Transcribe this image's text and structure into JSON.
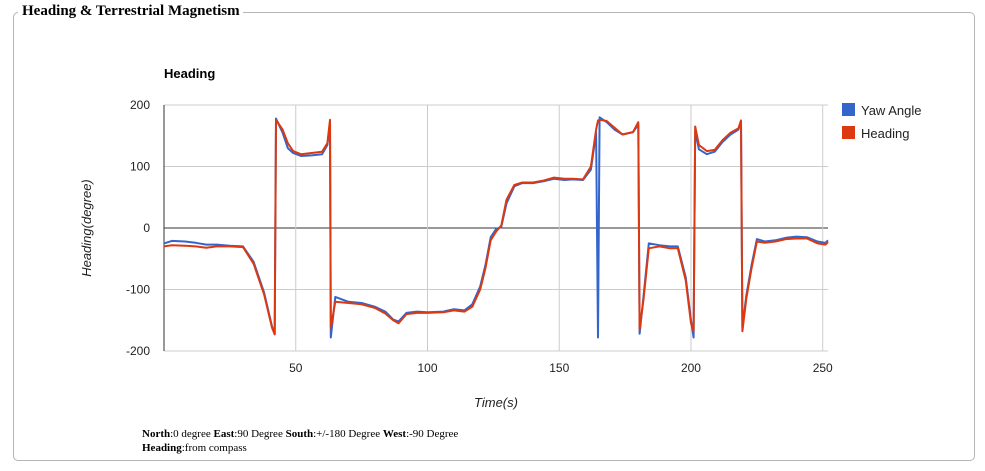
{
  "panel": {
    "legend": "Heading & Terrestrial Magnetism"
  },
  "chart_data": {
    "type": "line",
    "title": "Heading",
    "xlabel": "Time(s)",
    "ylabel": "Heading(degree)",
    "xlim": [
      0,
      252
    ],
    "ylim": [
      -200,
      200
    ],
    "x_ticks": [
      50,
      100,
      150,
      200,
      250
    ],
    "y_ticks": [
      200,
      100,
      0,
      -100,
      -200
    ],
    "grid": true,
    "legend_position": "right",
    "series": [
      {
        "name": "Yaw Angle",
        "color": "#3366cc",
        "points": [
          [
            0,
            -25
          ],
          [
            3,
            -21
          ],
          [
            8,
            -22
          ],
          [
            12,
            -24
          ],
          [
            16,
            -27
          ],
          [
            20,
            -27
          ],
          [
            25,
            -29
          ],
          [
            30,
            -30
          ],
          [
            34,
            -55
          ],
          [
            38,
            -105
          ],
          [
            41,
            -160
          ],
          [
            42,
            -172
          ],
          [
            42.5,
            178
          ],
          [
            45,
            155
          ],
          [
            47,
            130
          ],
          [
            49,
            122
          ],
          [
            52,
            117
          ],
          [
            56,
            118
          ],
          [
            60,
            120
          ],
          [
            62,
            135
          ],
          [
            63,
            172
          ],
          [
            63.3,
            -178
          ],
          [
            65,
            -112
          ],
          [
            70,
            -120
          ],
          [
            75,
            -122
          ],
          [
            80,
            -128
          ],
          [
            84,
            -136
          ],
          [
            87,
            -149
          ],
          [
            89,
            -152
          ],
          [
            92,
            -138
          ],
          [
            96,
            -136
          ],
          [
            100,
            -137
          ],
          [
            106,
            -136
          ],
          [
            110,
            -132
          ],
          [
            114,
            -134
          ],
          [
            117,
            -124
          ],
          [
            120,
            -95
          ],
          [
            122,
            -60
          ],
          [
            124,
            -15
          ],
          [
            126,
            -2
          ],
          [
            128,
            2
          ],
          [
            130,
            40
          ],
          [
            133,
            68
          ],
          [
            136,
            73
          ],
          [
            140,
            73
          ],
          [
            144,
            76
          ],
          [
            148,
            80
          ],
          [
            152,
            78
          ],
          [
            155,
            79
          ],
          [
            159,
            78
          ],
          [
            162,
            95
          ],
          [
            164,
            155
          ],
          [
            164.7,
            -178
          ],
          [
            165.3,
            180
          ],
          [
            168,
            172
          ],
          [
            171,
            160
          ],
          [
            174,
            152
          ],
          [
            178,
            156
          ],
          [
            180,
            168
          ],
          [
            180.5,
            -172
          ],
          [
            182,
            -110
          ],
          [
            184,
            -25
          ],
          [
            188,
            -28
          ],
          [
            192,
            -30
          ],
          [
            195,
            -30
          ],
          [
            198,
            -80
          ],
          [
            200,
            -150
          ],
          [
            201,
            -178
          ],
          [
            201.6,
            158
          ],
          [
            203,
            128
          ],
          [
            206,
            120
          ],
          [
            209,
            124
          ],
          [
            212,
            140
          ],
          [
            215,
            152
          ],
          [
            218,
            160
          ],
          [
            219,
            172
          ],
          [
            219.5,
            -162
          ],
          [
            221,
            -110
          ],
          [
            223,
            -60
          ],
          [
            225,
            -18
          ],
          [
            228,
            -22
          ],
          [
            232,
            -20
          ],
          [
            236,
            -16
          ],
          [
            240,
            -14
          ],
          [
            244,
            -15
          ],
          [
            248,
            -22
          ],
          [
            251,
            -24
          ],
          [
            252,
            -20
          ]
        ]
      },
      {
        "name": "Heading",
        "color": "#dc3912",
        "points": [
          [
            0,
            -30
          ],
          [
            3,
            -28
          ],
          [
            8,
            -29
          ],
          [
            12,
            -30
          ],
          [
            16,
            -32
          ],
          [
            20,
            -30
          ],
          [
            25,
            -30
          ],
          [
            30,
            -31
          ],
          [
            34,
            -58
          ],
          [
            38,
            -108
          ],
          [
            41,
            -162
          ],
          [
            42,
            -173
          ],
          [
            42.5,
            176
          ],
          [
            45,
            160
          ],
          [
            47,
            138
          ],
          [
            49,
            125
          ],
          [
            52,
            120
          ],
          [
            56,
            122
          ],
          [
            60,
            124
          ],
          [
            62,
            138
          ],
          [
            63,
            176
          ],
          [
            63.3,
            -162
          ],
          [
            65,
            -120
          ],
          [
            70,
            -122
          ],
          [
            75,
            -124
          ],
          [
            80,
            -130
          ],
          [
            84,
            -139
          ],
          [
            87,
            -150
          ],
          [
            89,
            -155
          ],
          [
            92,
            -140
          ],
          [
            96,
            -138
          ],
          [
            100,
            -138
          ],
          [
            106,
            -137
          ],
          [
            110,
            -134
          ],
          [
            114,
            -136
          ],
          [
            117,
            -128
          ],
          [
            120,
            -100
          ],
          [
            122,
            -65
          ],
          [
            124,
            -20
          ],
          [
            126,
            -6
          ],
          [
            128,
            4
          ],
          [
            130,
            46
          ],
          [
            133,
            70
          ],
          [
            136,
            74
          ],
          [
            140,
            74
          ],
          [
            144,
            77
          ],
          [
            148,
            82
          ],
          [
            152,
            80
          ],
          [
            155,
            80
          ],
          [
            159,
            79
          ],
          [
            162,
            100
          ],
          [
            164,
            160
          ],
          [
            164.7,
            175
          ],
          [
            165.3,
            176
          ],
          [
            168,
            174
          ],
          [
            171,
            163
          ],
          [
            174,
            152
          ],
          [
            178,
            156
          ],
          [
            180,
            172
          ],
          [
            180.5,
            -165
          ],
          [
            182,
            -115
          ],
          [
            184,
            -33
          ],
          [
            188,
            -30
          ],
          [
            192,
            -33
          ],
          [
            195,
            -33
          ],
          [
            198,
            -85
          ],
          [
            200,
            -155
          ],
          [
            201,
            -168
          ],
          [
            201.6,
            165
          ],
          [
            203,
            135
          ],
          [
            206,
            125
          ],
          [
            209,
            127
          ],
          [
            212,
            143
          ],
          [
            215,
            155
          ],
          [
            218,
            162
          ],
          [
            219,
            175
          ],
          [
            219.5,
            -168
          ],
          [
            221,
            -115
          ],
          [
            223,
            -65
          ],
          [
            225,
            -22
          ],
          [
            228,
            -24
          ],
          [
            232,
            -22
          ],
          [
            236,
            -18
          ],
          [
            240,
            -17
          ],
          [
            244,
            -17
          ],
          [
            248,
            -25
          ],
          [
            251,
            -27
          ],
          [
            252,
            -23
          ]
        ]
      }
    ]
  },
  "notes": {
    "north_label": "North",
    "north_value": ":0 degree ",
    "east_label": "East",
    "east_value": ":90 Degree ",
    "south_label": "South",
    "south_value": ":+/-180 Degree ",
    "west_label": "West",
    "west_value": ":-90 Degree",
    "heading_label": "Heading",
    "heading_value": ":from compass"
  }
}
